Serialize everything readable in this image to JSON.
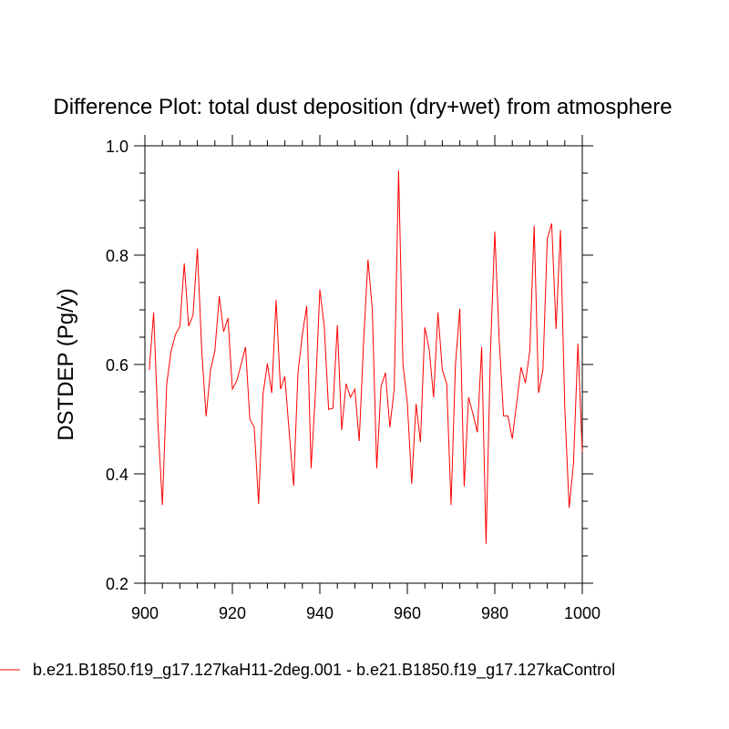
{
  "chart_data": {
    "type": "line",
    "title": "Difference Plot: total dust deposition (dry+wet) from atmosphere",
    "xlabel": "",
    "ylabel": "DSTDEP  (Pg/y)",
    "xlim": [
      900,
      1000
    ],
    "ylim": [
      0.2,
      1.0
    ],
    "x_ticks": [
      900,
      920,
      940,
      960,
      980,
      1000
    ],
    "x_tick_labels": [
      "900",
      "920",
      "940",
      "960",
      "980",
      "1000"
    ],
    "y_ticks": [
      0.2,
      0.4,
      0.6,
      0.8,
      1.0
    ],
    "y_tick_labels": [
      "0.2",
      "0.4",
      "0.6",
      "0.8",
      "1.0"
    ],
    "grid": false,
    "legend_position": "bottom",
    "series": [
      {
        "name": "b.e21.B1850.f19_g17.127kaH11-2deg.001 - b.e21.B1850.f19_g17.127kaControl",
        "color": "#ff0000",
        "x": [
          901,
          902,
          903,
          904,
          905,
          906,
          907,
          908,
          909,
          910,
          911,
          912,
          913,
          914,
          915,
          916,
          917,
          918,
          919,
          920,
          921,
          922,
          923,
          924,
          925,
          926,
          927,
          928,
          929,
          930,
          931,
          932,
          933,
          934,
          935,
          936,
          937,
          938,
          939,
          940,
          941,
          942,
          943,
          944,
          945,
          946,
          947,
          948,
          949,
          950,
          951,
          952,
          953,
          954,
          955,
          956,
          957,
          958,
          959,
          960,
          961,
          962,
          963,
          964,
          965,
          966,
          967,
          968,
          969,
          970,
          971,
          972,
          973,
          974,
          975,
          976,
          977,
          978,
          979,
          980,
          981,
          982,
          983,
          984,
          985,
          986,
          987,
          988,
          989,
          990,
          991,
          992,
          993,
          994,
          995,
          996,
          997,
          998,
          999,
          1000
        ],
        "values": [
          0.59,
          0.695,
          0.49,
          0.343,
          0.565,
          0.625,
          0.655,
          0.67,
          0.785,
          0.67,
          0.69,
          0.812,
          0.625,
          0.505,
          0.59,
          0.625,
          0.725,
          0.66,
          0.685,
          0.555,
          0.57,
          0.6,
          0.632,
          0.5,
          0.485,
          0.345,
          0.545,
          0.602,
          0.548,
          0.718,
          0.555,
          0.578,
          0.475,
          0.378,
          0.585,
          0.655,
          0.707,
          0.41,
          0.55,
          0.737,
          0.67,
          0.518,
          0.52,
          0.672,
          0.48,
          0.565,
          0.54,
          0.555,
          0.46,
          0.64,
          0.792,
          0.7,
          0.41,
          0.56,
          0.585,
          0.485,
          0.555,
          0.955,
          0.6,
          0.53,
          0.382,
          0.528,
          0.458,
          0.668,
          0.628,
          0.54,
          0.695,
          0.59,
          0.565,
          0.343,
          0.6,
          0.702,
          0.377,
          0.54,
          0.51,
          0.476,
          0.632,
          0.272,
          0.62,
          0.843,
          0.645,
          0.506,
          0.506,
          0.464,
          0.53,
          0.595,
          0.566,
          0.625,
          0.854,
          0.548,
          0.59,
          0.83,
          0.858,
          0.665,
          0.846,
          0.52,
          0.338,
          0.42,
          0.638,
          0.44
        ]
      }
    ]
  }
}
